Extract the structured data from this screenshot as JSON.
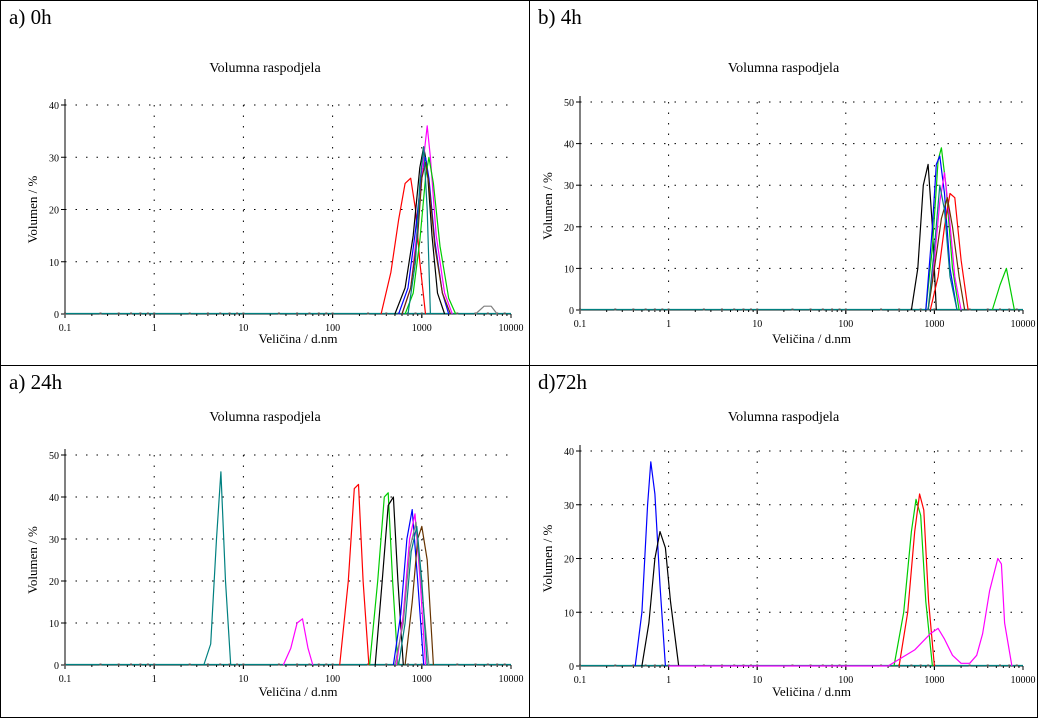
{
  "panels": [
    {
      "label": "a) 0h",
      "chart_data": {
        "type": "line",
        "title": "Volumna raspodjela",
        "xlabel": "Veličina / d.nm",
        "ylabel": "Volumen / %",
        "xscale": "log",
        "xlim": [
          0.1,
          10000
        ],
        "ylim": [
          0,
          40
        ],
        "xticks": [
          "0.1",
          "1",
          "10",
          "100",
          "1000",
          "10000"
        ],
        "yticks": [
          "0",
          "10",
          "20",
          "30",
          "40"
        ],
        "grid": true,
        "series": [
          {
            "color": "#ff0000",
            "x": [
              350,
              450,
              550,
              650,
              750,
              850,
              950,
              1100
            ],
            "y": [
              0,
              8,
              18,
              25,
              26,
              20,
              10,
              0
            ]
          },
          {
            "color": "#000000",
            "x": [
              500,
              650,
              800,
              950,
              1050,
              1150,
              1300,
              1500,
              1800
            ],
            "y": [
              0,
              5,
              15,
              28,
              32,
              28,
              15,
              4,
              0
            ]
          },
          {
            "color": "#0000ff",
            "x": [
              550,
              700,
              850,
              1000,
              1100,
              1200,
              1400,
              1700,
              2000
            ],
            "y": [
              0,
              5,
              16,
              27,
              30,
              26,
              14,
              4,
              0
            ]
          },
          {
            "color": "#ff00ff",
            "x": [
              600,
              750,
              900,
              1050,
              1150,
              1250,
              1450,
              1800,
              2200
            ],
            "y": [
              0,
              5,
              17,
              30,
              36,
              30,
              15,
              4,
              0
            ]
          },
          {
            "color": "#00cc00",
            "x": [
              650,
              800,
              950,
              1100,
              1200,
              1350,
              1600,
              2000,
              2400
            ],
            "y": [
              0,
              4,
              14,
              26,
              30,
              25,
              13,
              3,
              0
            ]
          },
          {
            "color": "#663300",
            "x": [
              600,
              750,
              900,
              1000,
              1100,
              1200,
              1400,
              1700,
              2100
            ],
            "y": [
              0,
              5,
              15,
              26,
              29,
              25,
              13,
              4,
              0
            ]
          },
          {
            "color": "#008080",
            "x": [
              700,
              850,
              950,
              1050,
              1150,
              1250
            ],
            "y": [
              0,
              10,
              25,
              32,
              20,
              0
            ]
          },
          {
            "color": "#808080",
            "x": [
              4000,
              5000,
              6000,
              7000
            ],
            "y": [
              0,
              1.5,
              1.5,
              0
            ]
          }
        ]
      }
    },
    {
      "label": "b) 4h",
      "chart_data": {
        "type": "line",
        "title": "Volumna raspodjela",
        "xlabel": "Veličina / d.nm",
        "ylabel": "Volumen / %",
        "xscale": "log",
        "xlim": [
          0.1,
          10000
        ],
        "ylim": [
          0,
          50
        ],
        "xticks": [
          "0.1",
          "1",
          "10",
          "100",
          "1000",
          "10000"
        ],
        "yticks": [
          "0",
          "10",
          "20",
          "30",
          "40",
          "50"
        ],
        "grid": true,
        "series": [
          {
            "color": "#000000",
            "x": [
              550,
              650,
              750,
              850,
              950,
              1050
            ],
            "y": [
              0,
              10,
              30,
              35,
              20,
              0
            ]
          },
          {
            "color": "#00cc00",
            "x": [
              800,
              950,
              1100,
              1200,
              1350,
              1600,
              1900
            ],
            "y": [
              0,
              15,
              36,
              39,
              30,
              10,
              0
            ]
          },
          {
            "color": "#0000ff",
            "x": [
              800,
              950,
              1050,
              1150,
              1300,
              1500,
              1800
            ],
            "y": [
              0,
              20,
              35,
              37,
              28,
              10,
              0
            ]
          },
          {
            "color": "#ff00ff",
            "x": [
              850,
              1000,
              1150,
              1300,
              1450,
              1700,
              2000
            ],
            "y": [
              0,
              12,
              26,
              33,
              24,
              8,
              0
            ]
          },
          {
            "color": "#ff0000",
            "x": [
              900,
              1100,
              1300,
              1500,
              1700,
              2000,
              2400
            ],
            "y": [
              0,
              8,
              20,
              28,
              27,
              12,
              0
            ]
          },
          {
            "color": "#663300",
            "x": [
              850,
              1000,
              1200,
              1400,
              1600,
              1900,
              2200
            ],
            "y": [
              0,
              10,
              22,
              27,
              20,
              8,
              0
            ]
          },
          {
            "color": "#008080",
            "x": [
              850,
              1000,
              1150,
              1300,
              1500,
              1800
            ],
            "y": [
              0,
              15,
              30,
              24,
              8,
              0
            ]
          },
          {
            "color": "#00cc00",
            "x": [
              4500,
              5500,
              6500,
              8000
            ],
            "y": [
              0,
              6,
              10,
              0
            ]
          }
        ]
      }
    },
    {
      "label": "a) 24h",
      "chart_data": {
        "type": "line",
        "title": "Volumna raspodjela",
        "xlabel": "Veličina / d.nm",
        "ylabel": "Volumen / %",
        "xscale": "log",
        "xlim": [
          0.1,
          10000
        ],
        "ylim": [
          0,
          50
        ],
        "xticks": [
          "0.1",
          "1",
          "10",
          "100",
          "1000",
          "10000"
        ],
        "yticks": [
          "0",
          "10",
          "20",
          "30",
          "40",
          "50"
        ],
        "grid": true,
        "series": [
          {
            "color": "#008080",
            "x": [
              3.6,
              4.3,
              5,
              5.6,
              6.3,
              7.2
            ],
            "y": [
              0,
              5,
              30,
              46,
              20,
              0
            ]
          },
          {
            "color": "#ff00ff",
            "x": [
              28,
              34,
              40,
              46,
              53,
              60
            ],
            "y": [
              0,
              4,
              10,
              11,
              4,
              0
            ]
          },
          {
            "color": "#ff0000",
            "x": [
              120,
              150,
              175,
              195,
              220,
              255
            ],
            "y": [
              0,
              20,
              42,
              43,
              20,
              0
            ]
          },
          {
            "color": "#00cc00",
            "x": [
              260,
              320,
              380,
              420,
              470,
              540
            ],
            "y": [
              0,
              20,
              40,
              41,
              20,
              0
            ]
          },
          {
            "color": "#000000",
            "x": [
              300,
              360,
              420,
              480,
              540,
              620
            ],
            "y": [
              0,
              20,
              38,
              40,
              20,
              0
            ]
          },
          {
            "color": "#0000ff",
            "x": [
              480,
              580,
              680,
              780,
              900,
              1050
            ],
            "y": [
              0,
              12,
              30,
              37,
              20,
              0
            ]
          },
          {
            "color": "#ff00ff",
            "x": [
              520,
              620,
              730,
              840,
              960,
              1100
            ],
            "y": [
              0,
              12,
              30,
              36,
              20,
              0
            ]
          },
          {
            "color": "#663300",
            "x": [
              650,
              780,
              900,
              1000,
              1150,
              1350
            ],
            "y": [
              0,
              15,
              30,
              33,
              25,
              0
            ]
          },
          {
            "color": "#808080",
            "x": [
              500,
              620,
              740,
              860,
              1000,
              1200
            ],
            "y": [
              0,
              10,
              28,
              34,
              18,
              0
            ]
          },
          {
            "color": "#008080",
            "x": [
              550,
              650,
              760,
              880,
              1000,
              1150
            ],
            "y": [
              0,
              10,
              27,
              33,
              20,
              0
            ]
          }
        ]
      }
    },
    {
      "label": "d)72h",
      "chart_data": {
        "type": "line",
        "title": "Volumna raspodjela",
        "xlabel": "Veličina / d.nm",
        "ylabel": "Volumen / %",
        "xscale": "log",
        "xlim": [
          0.1,
          10000
        ],
        "ylim": [
          0,
          40
        ],
        "xticks": [
          "0.1",
          "1",
          "10",
          "100",
          "1000",
          "10000"
        ],
        "yticks": [
          "0",
          "10",
          "20",
          "30",
          "40"
        ],
        "grid": true,
        "series": [
          {
            "color": "#0000ff",
            "x": [
              0.42,
              0.5,
              0.58,
              0.63,
              0.7,
              0.8,
              0.92
            ],
            "y": [
              0,
              10,
              30,
              38,
              32,
              15,
              0
            ]
          },
          {
            "color": "#000000",
            "x": [
              0.5,
              0.6,
              0.7,
              0.8,
              0.92,
              1.05,
              1.3
            ],
            "y": [
              0,
              8,
              20,
              25,
              22,
              12,
              0
            ]
          },
          {
            "color": "#00cc00",
            "x": [
              350,
              450,
              550,
              620,
              700,
              800,
              950
            ],
            "y": [
              0,
              10,
              25,
              31,
              28,
              12,
              0
            ]
          },
          {
            "color": "#ff0000",
            "x": [
              400,
              500,
              600,
              680,
              760,
              860,
              1000
            ],
            "y": [
              0,
              10,
              25,
              32,
              29,
              12,
              0
            ]
          },
          {
            "color": "#ff00ff",
            "x": [
              1,
              100,
              300,
              600,
              900,
              1100,
              1300,
              1600,
              2000,
              2500,
              3000,
              3500,
              4200,
              5200,
              5700,
              6200,
              7500
            ],
            "y": [
              0,
              0,
              0,
              3,
              6,
              7,
              5,
              2,
              0.5,
              0.5,
              2,
              6,
              14,
              20,
              19,
              8,
              0
            ]
          }
        ]
      }
    }
  ]
}
